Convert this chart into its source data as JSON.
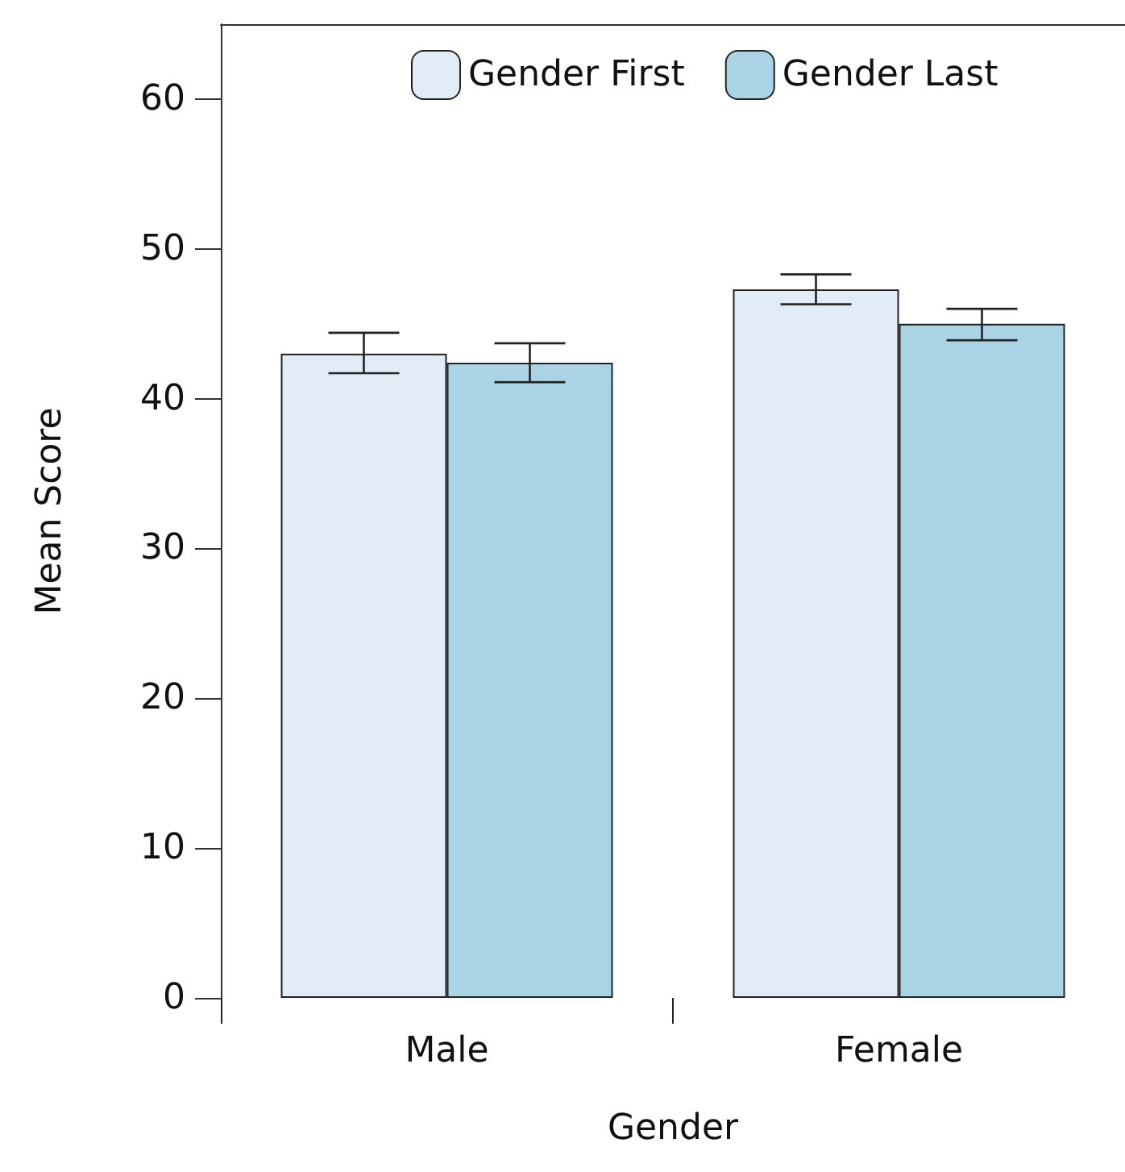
{
  "chart_data": {
    "type": "bar",
    "xlabel": "Gender",
    "ylabel": "Mean Score",
    "categories": [
      "Male",
      "Female"
    ],
    "series": [
      {
        "name": "Gender First",
        "color": "#e1ecf7",
        "values": [
          43.0,
          47.3
        ],
        "errors": [
          [
            41.7,
            44.4
          ],
          [
            46.3,
            48.3
          ]
        ]
      },
      {
        "name": "Gender Last",
        "color": "#abd3e6",
        "values": [
          42.4,
          45.0
        ],
        "errors": [
          [
            41.1,
            43.7
          ],
          [
            43.9,
            46.0
          ]
        ]
      }
    ],
    "ylim": [
      0,
      65
    ],
    "yticks": [
      0,
      10,
      20,
      30,
      40,
      50,
      60
    ],
    "grid": false,
    "legend": "top"
  }
}
